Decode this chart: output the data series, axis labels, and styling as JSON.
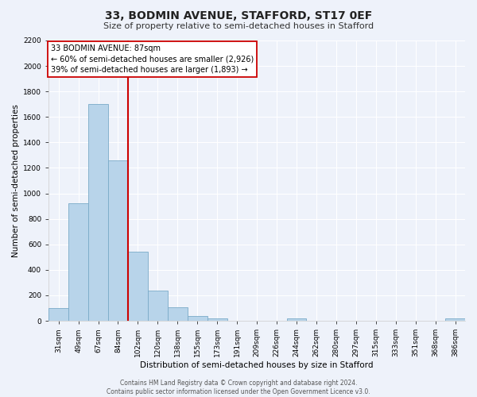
{
  "title": "33, BODMIN AVENUE, STAFFORD, ST17 0EF",
  "subtitle": "Size of property relative to semi-detached houses in Stafford",
  "xlabel": "Distribution of semi-detached houses by size in Stafford",
  "ylabel": "Number of semi-detached properties",
  "categories": [
    "31sqm",
    "49sqm",
    "67sqm",
    "84sqm",
    "102sqm",
    "120sqm",
    "138sqm",
    "155sqm",
    "173sqm",
    "191sqm",
    "209sqm",
    "226sqm",
    "244sqm",
    "262sqm",
    "280sqm",
    "297sqm",
    "315sqm",
    "333sqm",
    "351sqm",
    "368sqm",
    "386sqm"
  ],
  "values": [
    100,
    920,
    1700,
    1260,
    540,
    235,
    108,
    40,
    20,
    0,
    0,
    0,
    20,
    0,
    0,
    0,
    0,
    0,
    0,
    0,
    20
  ],
  "bar_color": "#b8d4ea",
  "bar_edge_color": "#7aaac8",
  "vline_color": "#cc0000",
  "vline_x_index": 3.5,
  "ylim": [
    0,
    2200
  ],
  "yticks": [
    0,
    200,
    400,
    600,
    800,
    1000,
    1200,
    1400,
    1600,
    1800,
    2000,
    2200
  ],
  "box_text_line1": "33 BODMIN AVENUE: 87sqm",
  "box_text_line2": "← 60% of semi-detached houses are smaller (2,926)",
  "box_text_line3": "39% of semi-detached houses are larger (1,893) →",
  "box_facecolor": "#ffffff",
  "box_edgecolor": "#cc0000",
  "footer_line1": "Contains HM Land Registry data © Crown copyright and database right 2024.",
  "footer_line2": "Contains public sector information licensed under the Open Government Licence v3.0.",
  "background_color": "#eef2fa",
  "grid_color": "#ffffff",
  "title_fontsize": 10,
  "subtitle_fontsize": 8,
  "tick_fontsize": 6.5,
  "ylabel_fontsize": 7.5,
  "xlabel_fontsize": 7.5,
  "footer_fontsize": 5.5,
  "annotation_fontsize": 7
}
